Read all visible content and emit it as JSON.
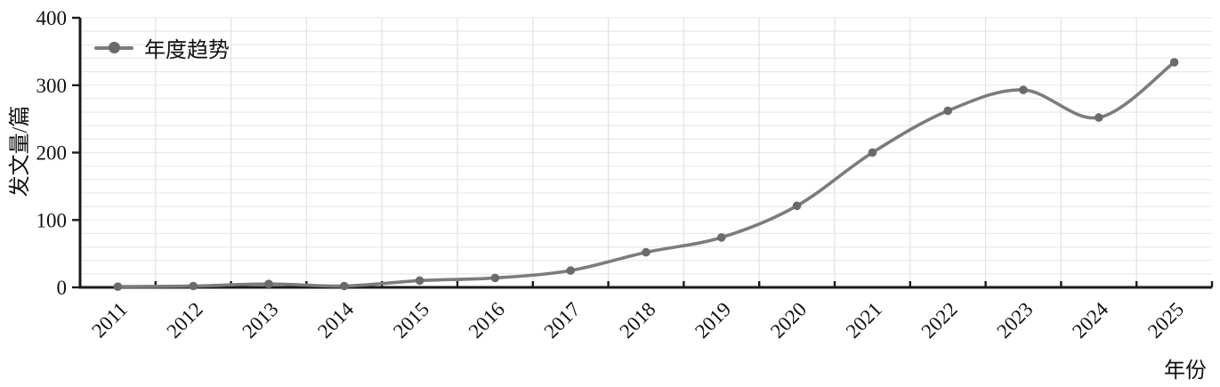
{
  "chart_data": {
    "type": "line",
    "title": "",
    "xlabel": "年份",
    "ylabel": "发文量/篇",
    "categories": [
      "2011",
      "2012",
      "2013",
      "2014",
      "2015",
      "2016",
      "2017",
      "2018",
      "2019",
      "2020",
      "2021",
      "2022",
      "2023",
      "2024",
      "2025"
    ],
    "series": [
      {
        "name": "年度趋势",
        "values": [
          1,
          2,
          5,
          2,
          10,
          14,
          25,
          52,
          74,
          121,
          200,
          262,
          293,
          252,
          334
        ]
      }
    ],
    "ylim": [
      0,
      400
    ],
    "yticks": [
      0,
      100,
      200,
      300,
      400
    ],
    "minor_grid_step": 20,
    "grid": true,
    "legend_position": "top-left",
    "line_style": "smooth-spline-with-circle-markers",
    "x_tick_rotation_deg": 45,
    "colors": {
      "line": "#7c7c7c",
      "marker": "#6a6a6a",
      "axis": "#1a1a1a",
      "grid_horizontal": "#e9e9e9",
      "grid_vertical": "#e2e2e2",
      "text": "#111111",
      "background": "#ffffff"
    }
  }
}
